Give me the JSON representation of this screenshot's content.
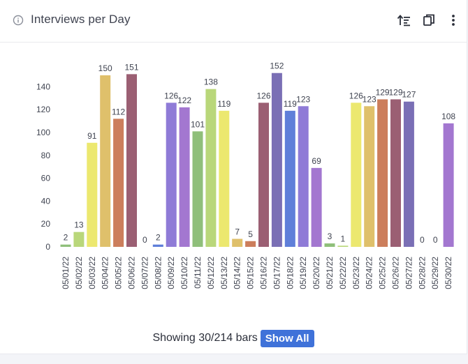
{
  "header": {
    "title": "Interviews per Day",
    "icons": [
      "info-icon",
      "sort-icon",
      "copy-icon",
      "more-vertical-icon"
    ]
  },
  "footer": {
    "showing_text": "Showing 30/214 bars",
    "show_all_label": "Show All"
  },
  "chart_data": {
    "type": "bar",
    "title": "",
    "xlabel": "",
    "ylabel": "",
    "ylim": [
      0,
      152
    ],
    "yticks": [
      0,
      20,
      40,
      60,
      80,
      100,
      120,
      140
    ],
    "grid": false,
    "categories": [
      "05/01/22",
      "05/02/22",
      "05/03/22",
      "05/04/22",
      "05/05/22",
      "05/06/22",
      "05/07/22",
      "05/08/22",
      "05/09/22",
      "05/10/22",
      "05/11/22",
      "05/12/22",
      "05/13/22",
      "05/14/22",
      "05/15/22",
      "05/16/22",
      "05/17/22",
      "05/18/22",
      "05/19/22",
      "05/20/22",
      "05/21/22",
      "05/22/22",
      "05/23/22",
      "05/24/22",
      "05/25/22",
      "05/26/22",
      "05/27/22",
      "05/28/22",
      "05/29/22",
      "05/30/22"
    ],
    "values": [
      2,
      13,
      91,
      150,
      112,
      151,
      0,
      2,
      126,
      122,
      101,
      138,
      119,
      7,
      5,
      126,
      152,
      119,
      123,
      69,
      3,
      1,
      126,
      123,
      129,
      129,
      127,
      0,
      0,
      108
    ],
    "colors": [
      "#8fbf7a",
      "#b9d77a",
      "#ece86f",
      "#dfc06b",
      "#cc7e5c",
      "#9b5f73",
      "#9b5f73",
      "#5f7fd9",
      "#8f7bd7",
      "#a377d0",
      "#8fbf7a",
      "#b9d77a",
      "#ece86f",
      "#dfc06b",
      "#cc7e5c",
      "#9b5f73",
      "#7a6fb5",
      "#5f7fd9",
      "#8f7bd7",
      "#a377d0",
      "#8fbf7a",
      "#b9d77a",
      "#ece86f",
      "#dfc06b",
      "#cc7e5c",
      "#9b5f73",
      "#7a6fb5",
      "#5f7fd9",
      "#8f7bd7",
      "#a377d0"
    ]
  }
}
